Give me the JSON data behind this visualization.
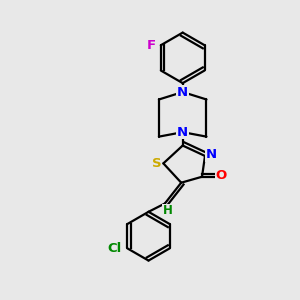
{
  "background_color": "#e8e8e8",
  "bond_color": "#000000",
  "atom_colors": {
    "N": "#0000ff",
    "O": "#ff0000",
    "S": "#ccaa00",
    "F": "#cc00cc",
    "Cl": "#008800",
    "H": "#008800",
    "C": "#000000"
  },
  "lw": 1.6,
  "font_size": 9.5
}
